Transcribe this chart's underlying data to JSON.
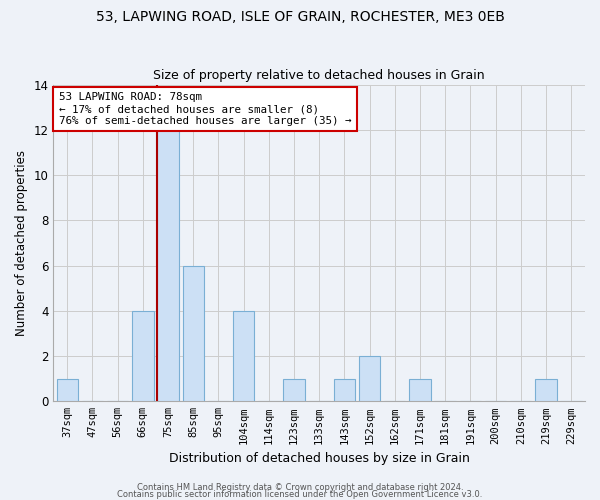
{
  "title": "53, LAPWING ROAD, ISLE OF GRAIN, ROCHESTER, ME3 0EB",
  "subtitle": "Size of property relative to detached houses in Grain",
  "xlabel": "Distribution of detached houses by size in Grain",
  "ylabel": "Number of detached properties",
  "bins": [
    "37sqm",
    "47sqm",
    "56sqm",
    "66sqm",
    "75sqm",
    "85sqm",
    "95sqm",
    "104sqm",
    "114sqm",
    "123sqm",
    "133sqm",
    "143sqm",
    "152sqm",
    "162sqm",
    "171sqm",
    "181sqm",
    "191sqm",
    "200sqm",
    "210sqm",
    "219sqm",
    "229sqm"
  ],
  "values": [
    1,
    0,
    0,
    4,
    12,
    6,
    0,
    4,
    0,
    1,
    0,
    1,
    2,
    0,
    1,
    0,
    0,
    0,
    0,
    1,
    0
  ],
  "highlight_bin_index": 4,
  "bar_color": "#cce0f5",
  "bar_edge_color": "#7aafd4",
  "highlight_line_color": "#aa0000",
  "annotation_box_edge_color": "#cc0000",
  "annotation_text_line1": "53 LAPWING ROAD: 78sqm",
  "annotation_text_line2": "← 17% of detached houses are smaller (8)",
  "annotation_text_line3": "76% of semi-detached houses are larger (35) →",
  "ylim": [
    0,
    14
  ],
  "yticks": [
    0,
    2,
    4,
    6,
    8,
    10,
    12,
    14
  ],
  "grid_color": "#cccccc",
  "bg_color": "#eef2f8",
  "footer1": "Contains HM Land Registry data © Crown copyright and database right 2024.",
  "footer2": "Contains public sector information licensed under the Open Government Licence v3.0."
}
